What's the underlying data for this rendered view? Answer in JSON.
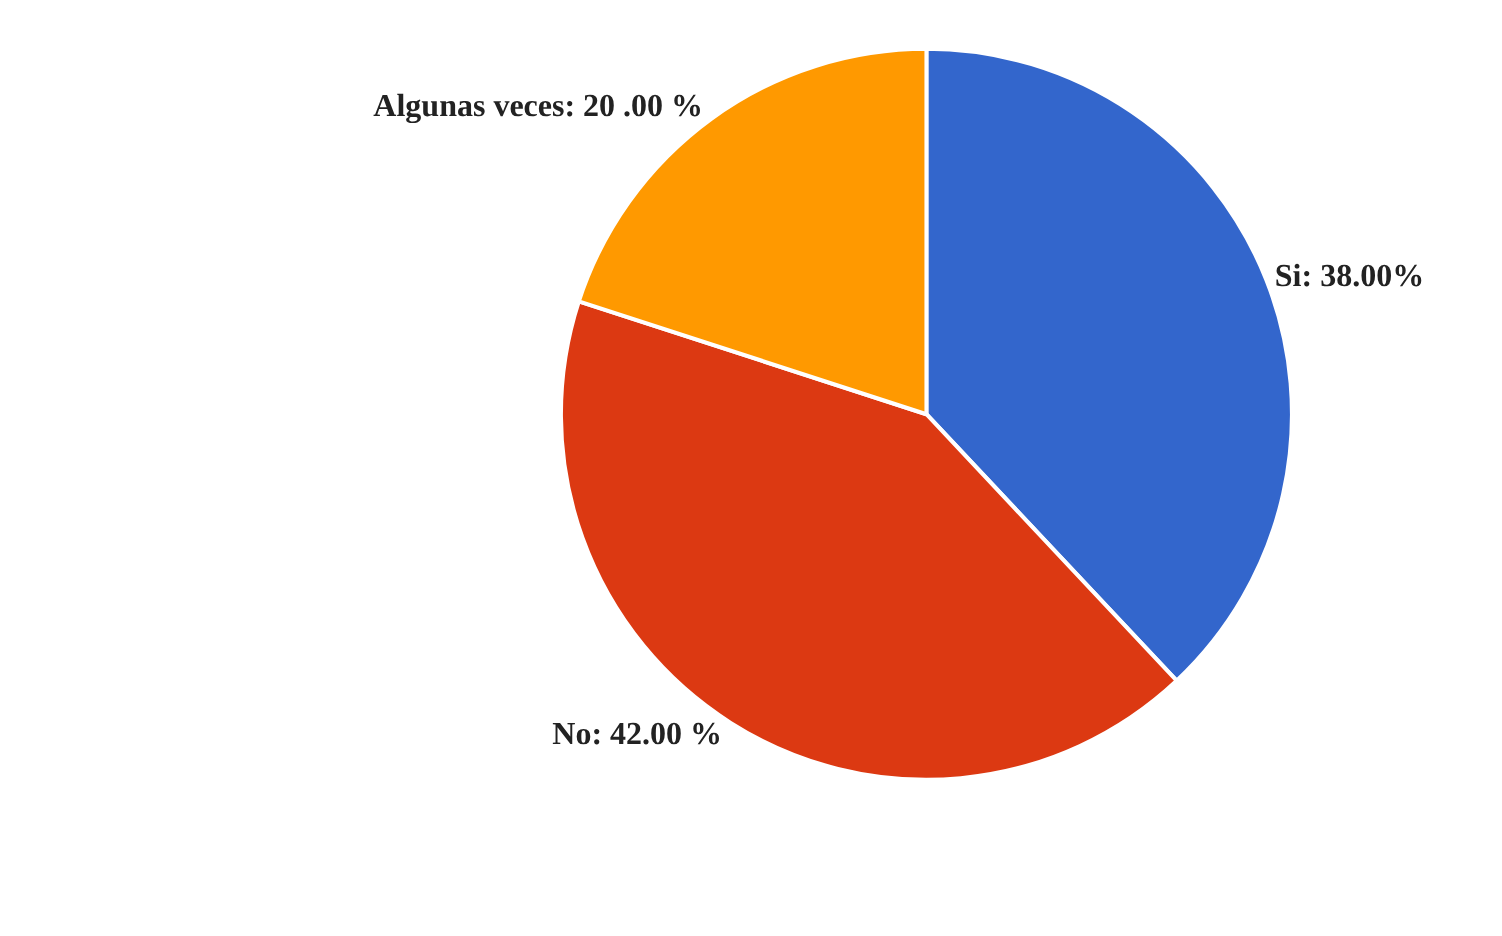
{
  "chart_data": {
    "type": "pie",
    "categories": [
      "Si",
      "No",
      "Algunas veces"
    ],
    "values": [
      38,
      42,
      20
    ],
    "colors": [
      "#3366cc",
      "#dc3912",
      "#ff9900"
    ],
    "value_labels": [
      "38.00%",
      "42.00 %",
      "20 .00 %"
    ],
    "legend": false
  }
}
